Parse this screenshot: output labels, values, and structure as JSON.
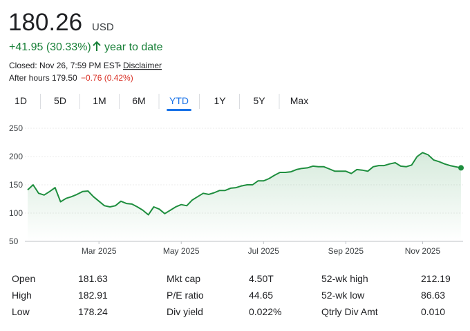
{
  "header": {
    "price": "180.26",
    "currency": "USD",
    "change": "+41.95 (30.33%)",
    "period": "year to date",
    "closed": "Closed: Nov 26, 7:59 PM EST",
    "disclaimer": "Disclaimer",
    "after_hours": "After hours 179.50",
    "after_hours_change": "−0.76 (0.42%)"
  },
  "tabs": {
    "items": [
      "1D",
      "5D",
      "1M",
      "6M",
      "YTD",
      "1Y",
      "5Y",
      "Max"
    ],
    "selected": 4
  },
  "chart_data": {
    "type": "line",
    "categories": [
      null,
      null,
      null,
      null,
      null,
      null,
      null,
      null,
      null,
      null,
      null,
      null,
      null,
      "Mar 2025",
      null,
      null,
      null,
      null,
      null,
      null,
      null,
      null,
      null,
      null,
      null,
      null,
      null,
      null,
      "May 2025",
      null,
      null,
      null,
      null,
      null,
      null,
      null,
      null,
      null,
      null,
      null,
      null,
      null,
      null,
      "Jul 2025",
      null,
      null,
      null,
      null,
      null,
      null,
      null,
      null,
      null,
      null,
      null,
      null,
      null,
      null,
      "Sep 2025",
      null,
      null,
      null,
      null,
      null,
      null,
      null,
      null,
      null,
      null,
      null,
      null,
      null,
      "Nov 2025",
      null,
      null,
      null,
      null,
      null,
      null,
      null
    ],
    "values": [
      141,
      150,
      135,
      132,
      138,
      145,
      120,
      126,
      129,
      133,
      138,
      139,
      129,
      121,
      113,
      111,
      113,
      121,
      117,
      116,
      111,
      105,
      97,
      111,
      107,
      99,
      105,
      111,
      115,
      113,
      123,
      129,
      135,
      133,
      136,
      140,
      140,
      144,
      145,
      148,
      150,
      150,
      157,
      157,
      161,
      167,
      172,
      172,
      173,
      177,
      179,
      180,
      183,
      182,
      182,
      178,
      174,
      174,
      174,
      170,
      177,
      176,
      174,
      182,
      184,
      184,
      187,
      189,
      183,
      182,
      185,
      200,
      207,
      203,
      194,
      191,
      187,
      184,
      182,
      180
    ],
    "color": "#1e8e3e",
    "ylim": [
      50,
      250
    ],
    "yticks": [
      50,
      100,
      150,
      200,
      250
    ],
    "grid": true
  },
  "stats": {
    "rows": [
      [
        "Open",
        "181.63",
        "Mkt cap",
        "4.50T",
        "52-wk high",
        "212.19"
      ],
      [
        "High",
        "182.91",
        "P/E ratio",
        "44.65",
        "52-wk low",
        "86.63"
      ],
      [
        "Low",
        "178.24",
        "Div yield",
        "0.022%",
        "Qtrly Div Amt",
        "0.010"
      ]
    ]
  }
}
